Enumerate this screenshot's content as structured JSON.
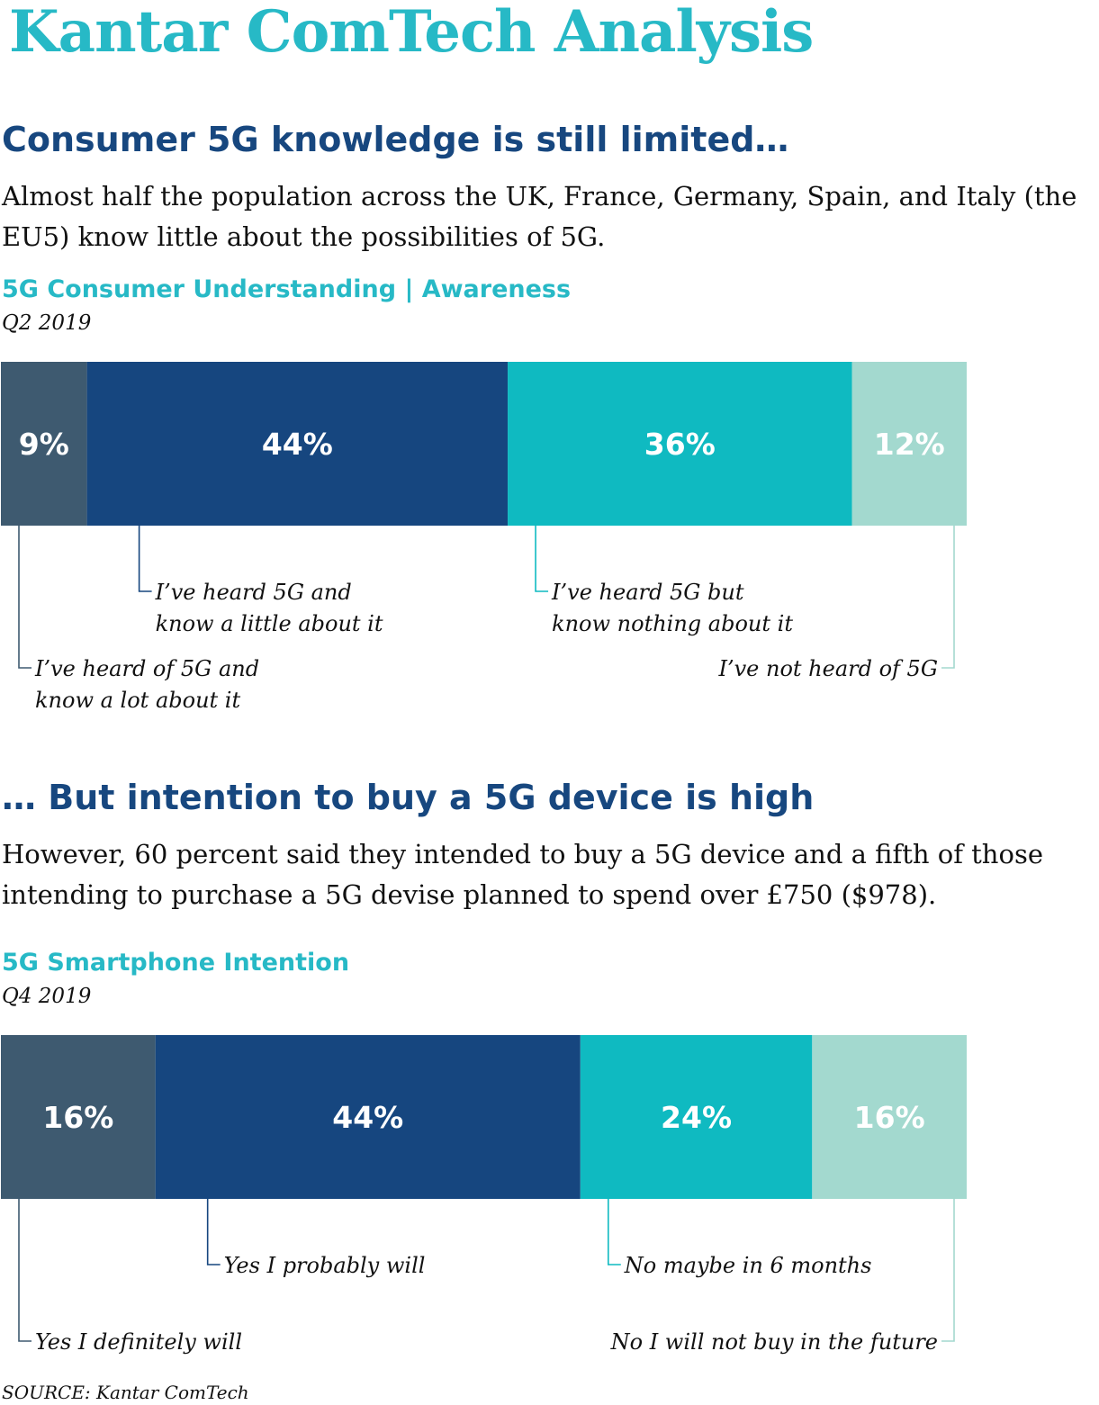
{
  "page": {
    "title": "Kantar ComTech Analysis",
    "source": "SOURCE: Kantar ComTech"
  },
  "section1": {
    "heading": "Consumer 5G knowledge is still limited…",
    "body": "Almost half the population across the UK, France, Germany, Spain, and Italy (the EU5) know little about the possibilities of 5G."
  },
  "section2": {
    "heading": "… But intention to buy a 5G device is high",
    "body": "However, 60 percent said they intended to buy a 5G device and a fifth of those intending to purchase a 5G devise planned to spend over £750 ($978)."
  },
  "chart_data": [
    {
      "type": "bar",
      "orientation": "horizontal-stacked",
      "title": "5G Consumer Understanding | Awareness",
      "subtitle": "Q2 2019",
      "legend": "below",
      "grid": false,
      "segments": [
        {
          "value": 9,
          "label": "9%",
          "color": "#3e5a70",
          "legend": [
            "I’ve heard of 5G and",
            "know a lot about it"
          ],
          "legend_align": "left",
          "legend_level": 2
        },
        {
          "value": 44,
          "label": "44%",
          "color": "#16467f",
          "legend": [
            "I’ve heard 5G and",
            "know a little about it"
          ],
          "legend_align": "left",
          "legend_level": 1
        },
        {
          "value": 36,
          "label": "36%",
          "color": "#0fbac1",
          "legend": [
            "I’ve heard 5G but",
            "know nothing about it"
          ],
          "legend_align": "left",
          "legend_level": 1
        },
        {
          "value": 12,
          "label": "12%",
          "color": "#a3d9cf",
          "legend": [
            "I’ve not heard of 5G"
          ],
          "legend_align": "right",
          "legend_level": 2
        }
      ]
    },
    {
      "type": "bar",
      "orientation": "horizontal-stacked",
      "title": "5G Smartphone Intention",
      "subtitle": "Q4 2019",
      "legend": "below",
      "grid": false,
      "segments": [
        {
          "value": 16,
          "label": "16%",
          "color": "#3e5a70",
          "legend": [
            "Yes I definitely will"
          ],
          "legend_align": "left",
          "legend_level": 2
        },
        {
          "value": 44,
          "label": "44%",
          "color": "#16467f",
          "legend": [
            "Yes I probably will"
          ],
          "legend_align": "left",
          "legend_level": 1
        },
        {
          "value": 24,
          "label": "24%",
          "color": "#0fbac1",
          "legend": [
            "No maybe in 6 months"
          ],
          "legend_align": "left",
          "legend_level": 1
        },
        {
          "value": 16,
          "label": "16%",
          "color": "#a3d9cf",
          "legend": [
            "No I will not buy in the future"
          ],
          "legend_align": "right",
          "legend_level": 2
        }
      ]
    }
  ]
}
